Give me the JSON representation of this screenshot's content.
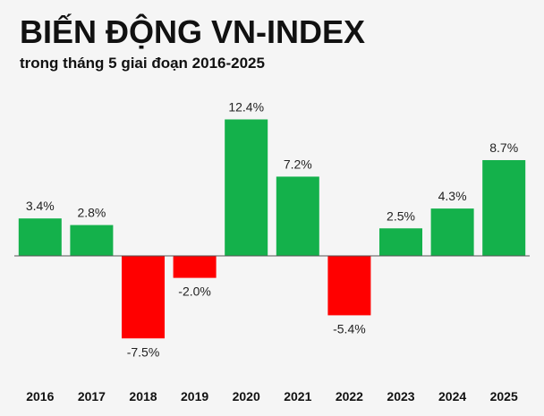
{
  "title": "BIẾN ĐỘNG VN-INDEX",
  "subtitle": "trong tháng 5 giai đoạn 2016-2025",
  "colors": {
    "positive": "#14b14b",
    "negative": "#ff0000",
    "baseline": "#555555"
  },
  "chart_data": {
    "type": "bar",
    "categories": [
      "2016",
      "2017",
      "2018",
      "2019",
      "2020",
      "2021",
      "2022",
      "2023",
      "2024",
      "2025"
    ],
    "values": [
      3.4,
      2.8,
      -7.5,
      -2.0,
      12.4,
      7.2,
      -5.4,
      2.5,
      4.3,
      8.7
    ],
    "value_labels": [
      "3.4%",
      "2.8%",
      "-7.5%",
      "-2.0%",
      "12.4%",
      "7.2%",
      "-5.4%",
      "2.5%",
      "4.3%",
      "8.7%"
    ],
    "ylim": [
      -9,
      14
    ],
    "grid": false,
    "legend": "none"
  }
}
